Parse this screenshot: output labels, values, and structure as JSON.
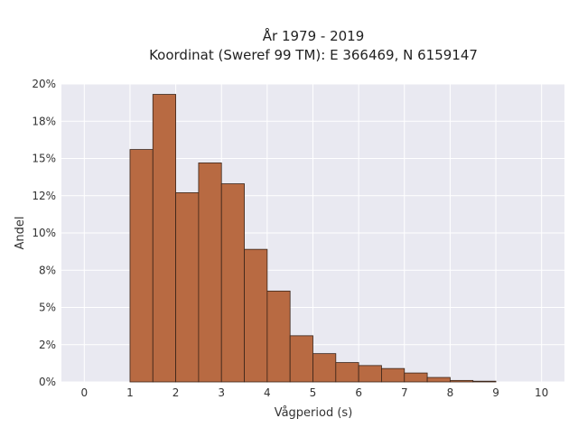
{
  "chart_data": {
    "type": "bar",
    "title_line1": "År 1979 - 2019",
    "title_line2": "Koordinat (Sweref 99 TM): E 366469, N 6159147",
    "xlabel": "Vågperiod (s)",
    "ylabel": "Andel",
    "xlim": [
      -0.5,
      10.5
    ],
    "ylim": [
      0,
      20
    ],
    "xticks": [
      0,
      1,
      2,
      3,
      4,
      5,
      6,
      7,
      8,
      9,
      10
    ],
    "yticks": [
      0,
      2.5,
      5,
      7.5,
      10,
      12.5,
      15,
      17.5,
      20
    ],
    "ytick_labels": [
      "0%",
      "2%",
      "5%",
      "8%",
      "10%",
      "12%",
      "15%",
      "18%",
      "20%"
    ],
    "bin_width": 0.5,
    "bins": [
      {
        "x0": 1.0,
        "value": 15.6
      },
      {
        "x0": 1.5,
        "value": 19.3
      },
      {
        "x0": 2.0,
        "value": 12.7
      },
      {
        "x0": 2.5,
        "value": 14.7
      },
      {
        "x0": 3.0,
        "value": 13.3
      },
      {
        "x0": 3.5,
        "value": 8.9
      },
      {
        "x0": 4.0,
        "value": 6.1
      },
      {
        "x0": 4.5,
        "value": 3.1
      },
      {
        "x0": 5.0,
        "value": 1.9
      },
      {
        "x0": 5.5,
        "value": 1.3
      },
      {
        "x0": 6.0,
        "value": 1.1
      },
      {
        "x0": 6.5,
        "value": 0.9
      },
      {
        "x0": 7.0,
        "value": 0.6
      },
      {
        "x0": 7.5,
        "value": 0.3
      },
      {
        "x0": 8.0,
        "value": 0.1
      },
      {
        "x0": 8.5,
        "value": 0.05
      }
    ],
    "colors": {
      "bar_fill": "#b86a42",
      "bar_edge": "#3a2418",
      "plot_background": "#e9e9f1",
      "grid": "#ffffff"
    },
    "grid": true
  }
}
